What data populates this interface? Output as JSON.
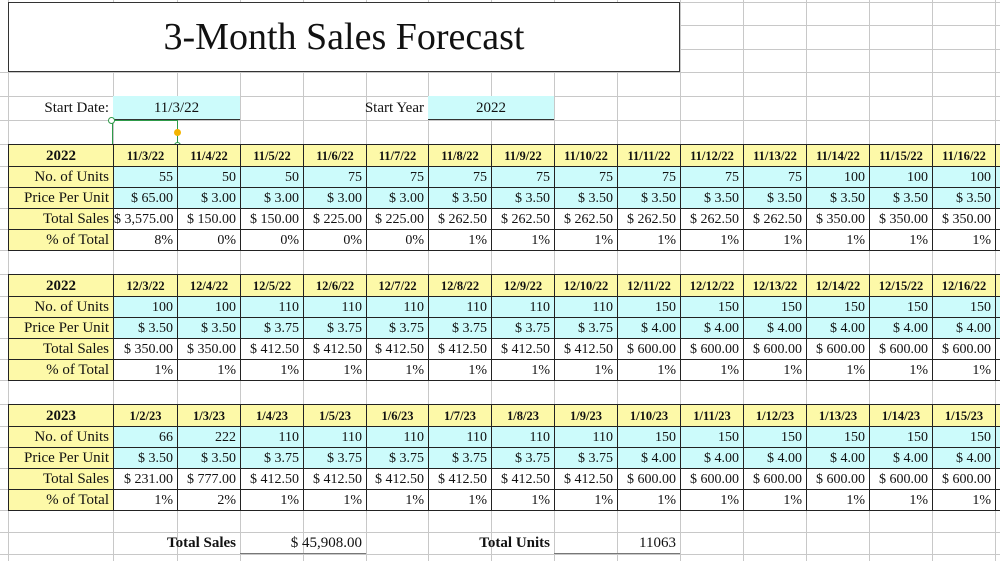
{
  "title": "3-Month Sales Forecast",
  "params": {
    "start_date_label": "Start Date:",
    "start_date_value": "11/3/22",
    "start_year_label": "Start Year",
    "start_year_value": "2022"
  },
  "row_labels": [
    "No. of Units",
    "Price Per Unit",
    "Total Sales",
    "% of Total"
  ],
  "colors": {
    "header_yellow": "#fdf9a8",
    "input_cyan": "#ccfbfb",
    "selection_green": "#2e9b4a"
  },
  "blocks": [
    {
      "year": "2022",
      "dates": [
        "11/3/22",
        "11/4/22",
        "11/5/22",
        "11/6/22",
        "11/7/22",
        "11/8/22",
        "11/9/22",
        "11/10/22",
        "11/11/22",
        "11/12/22",
        "11/13/22",
        "11/14/22",
        "11/15/22",
        "11/16/22"
      ],
      "units": [
        "55",
        "50",
        "50",
        "75",
        "75",
        "75",
        "75",
        "75",
        "75",
        "75",
        "75",
        "100",
        "100",
        "100"
      ],
      "price": [
        "$ 65.00",
        "$ 3.00",
        "$ 3.00",
        "$ 3.00",
        "$ 3.00",
        "$ 3.50",
        "$ 3.50",
        "$ 3.50",
        "$ 3.50",
        "$ 3.50",
        "$ 3.50",
        "$ 3.50",
        "$ 3.50",
        "$ 3.50"
      ],
      "sales": [
        "$ 3,575.00",
        "$ 150.00",
        "$ 150.00",
        "$ 225.00",
        "$ 225.00",
        "$ 262.50",
        "$ 262.50",
        "$ 262.50",
        "$ 262.50",
        "$ 262.50",
        "$ 262.50",
        "$ 350.00",
        "$ 350.00",
        "$ 350.00"
      ],
      "pct": [
        "8%",
        "0%",
        "0%",
        "0%",
        "0%",
        "1%",
        "1%",
        "1%",
        "1%",
        "1%",
        "1%",
        "1%",
        "1%",
        "1%"
      ]
    },
    {
      "year": "2022",
      "dates": [
        "12/3/22",
        "12/4/22",
        "12/5/22",
        "12/6/22",
        "12/7/22",
        "12/8/22",
        "12/9/22",
        "12/10/22",
        "12/11/22",
        "12/12/22",
        "12/13/22",
        "12/14/22",
        "12/15/22",
        "12/16/22"
      ],
      "units": [
        "100",
        "100",
        "110",
        "110",
        "110",
        "110",
        "110",
        "110",
        "150",
        "150",
        "150",
        "150",
        "150",
        "150"
      ],
      "price": [
        "$ 3.50",
        "$ 3.50",
        "$ 3.75",
        "$ 3.75",
        "$ 3.75",
        "$ 3.75",
        "$ 3.75",
        "$ 3.75",
        "$ 4.00",
        "$ 4.00",
        "$ 4.00",
        "$ 4.00",
        "$ 4.00",
        "$ 4.00"
      ],
      "sales": [
        "$ 350.00",
        "$ 350.00",
        "$ 412.50",
        "$ 412.50",
        "$ 412.50",
        "$ 412.50",
        "$ 412.50",
        "$ 412.50",
        "$ 600.00",
        "$ 600.00",
        "$ 600.00",
        "$ 600.00",
        "$ 600.00",
        "$ 600.00"
      ],
      "pct": [
        "1%",
        "1%",
        "1%",
        "1%",
        "1%",
        "1%",
        "1%",
        "1%",
        "1%",
        "1%",
        "1%",
        "1%",
        "1%",
        "1%"
      ]
    },
    {
      "year": "2023",
      "dates": [
        "1/2/23",
        "1/3/23",
        "1/4/23",
        "1/5/23",
        "1/6/23",
        "1/7/23",
        "1/8/23",
        "1/9/23",
        "1/10/23",
        "1/11/23",
        "1/12/23",
        "1/13/23",
        "1/14/23",
        "1/15/23"
      ],
      "units": [
        "66",
        "222",
        "110",
        "110",
        "110",
        "110",
        "110",
        "110",
        "150",
        "150",
        "150",
        "150",
        "150",
        "150"
      ],
      "price": [
        "$ 3.50",
        "$ 3.50",
        "$ 3.75",
        "$ 3.75",
        "$ 3.75",
        "$ 3.75",
        "$ 3.75",
        "$ 3.75",
        "$ 4.00",
        "$ 4.00",
        "$ 4.00",
        "$ 4.00",
        "$ 4.00",
        "$ 4.00"
      ],
      "sales": [
        "$ 231.00",
        "$ 777.00",
        "$ 412.50",
        "$ 412.50",
        "$ 412.50",
        "$ 412.50",
        "$ 412.50",
        "$ 412.50",
        "$ 600.00",
        "$ 600.00",
        "$ 600.00",
        "$ 600.00",
        "$ 600.00",
        "$ 600.00"
      ],
      "pct": [
        "1%",
        "2%",
        "1%",
        "1%",
        "1%",
        "1%",
        "1%",
        "1%",
        "1%",
        "1%",
        "1%",
        "1%",
        "1%",
        "1%"
      ]
    }
  ],
  "totals": {
    "total_sales_label": "Total Sales",
    "total_sales_value": "$ 45,908.00",
    "total_units_label": "Total Units",
    "total_units_value": "11063"
  }
}
